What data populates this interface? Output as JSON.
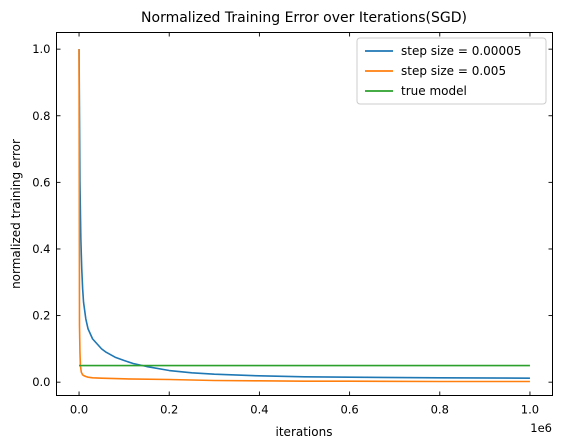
{
  "chart_data": {
    "type": "line",
    "title": "Normalized Training Error over Iterations(SGD)",
    "xlabel": "iterations",
    "ylabel": "normalized training error",
    "x_offset_label": "1e6",
    "xlim": [
      -50000,
      1050000
    ],
    "ylim": [
      -0.04,
      1.05
    ],
    "x_ticks": [
      0,
      200000,
      400000,
      600000,
      800000,
      1000000
    ],
    "x_tick_labels": [
      "0.0",
      "0.2",
      "0.4",
      "0.6",
      "0.8",
      "1.0"
    ],
    "y_ticks": [
      0.0,
      0.2,
      0.4,
      0.6,
      0.8,
      1.0
    ],
    "y_tick_labels": [
      "0.0",
      "0.2",
      "0.4",
      "0.6",
      "0.8",
      "1.0"
    ],
    "grid": false,
    "legend_position": "top-right",
    "series": [
      {
        "name": "step size = 0.00005",
        "color": "#1f77b4",
        "x": [
          0,
          1000,
          2000,
          4000,
          6000,
          8000,
          10000,
          15000,
          20000,
          25000,
          30000,
          40000,
          50000,
          60000,
          80000,
          100000,
          120000,
          150000,
          200000,
          250000,
          300000,
          400000,
          500000,
          600000,
          800000,
          1000000
        ],
        "y": [
          1.0,
          0.8,
          0.6,
          0.43,
          0.34,
          0.28,
          0.24,
          0.19,
          0.16,
          0.145,
          0.13,
          0.115,
          0.1,
          0.09,
          0.075,
          0.065,
          0.056,
          0.047,
          0.035,
          0.028,
          0.024,
          0.019,
          0.016,
          0.015,
          0.013,
          0.012
        ]
      },
      {
        "name": "step size = 0.005",
        "color": "#ff7f0e",
        "x": [
          0,
          500,
          1000,
          2000,
          3000,
          5000,
          8000,
          10000,
          15000,
          20000,
          30000,
          50000,
          100000,
          200000,
          300000,
          400000,
          500000,
          600000,
          800000,
          1000000
        ],
        "y": [
          1.0,
          0.6,
          0.17,
          0.09,
          0.05,
          0.03,
          0.022,
          0.02,
          0.017,
          0.015,
          0.013,
          0.012,
          0.01,
          0.008,
          0.005,
          0.004,
          0.003,
          0.003,
          0.002,
          0.002
        ]
      },
      {
        "name": "true model",
        "color": "#2ca02c",
        "x": [
          0,
          1000000
        ],
        "y": [
          0.05,
          0.05
        ]
      }
    ]
  }
}
